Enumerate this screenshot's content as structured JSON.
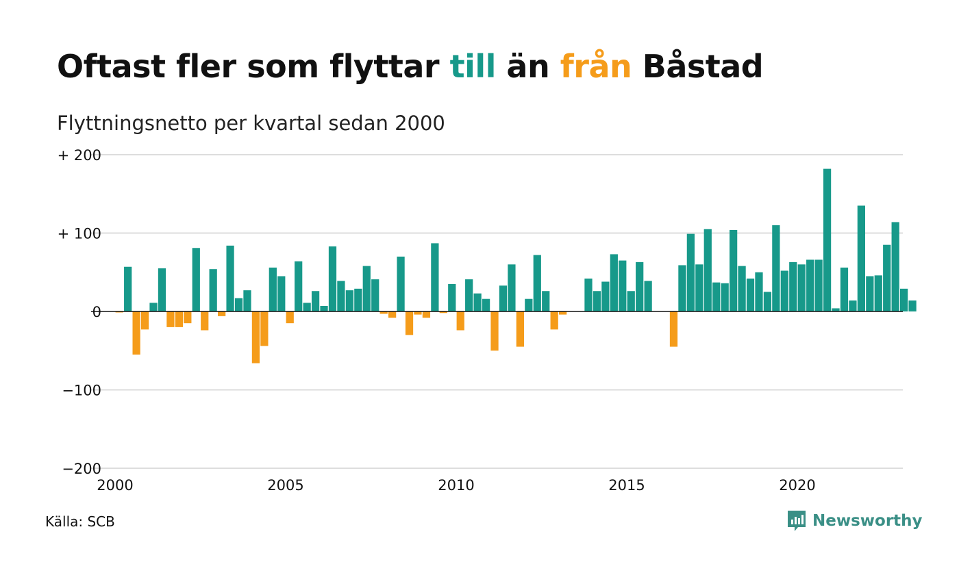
{
  "title": {
    "part1": "Oftast fler som flyttar ",
    "part2": "till",
    "part3": " än ",
    "part4": "från",
    "part5": " Båstad"
  },
  "subtitle": "Flyttningsnetto per kvartal sedan 2000",
  "source": "Källa: SCB",
  "brand": "Newsworthy",
  "colors": {
    "positive": "#17998a",
    "negative": "#f59c1a",
    "grid": "#dddddd",
    "zero_line": "#111111",
    "brand": "#3a8f86"
  },
  "chart_data": {
    "type": "bar",
    "start_year": 2000,
    "periods_per_year": 4,
    "ylim": [
      -200,
      200
    ],
    "yticks": [
      {
        "value": 200,
        "label": "+ 200"
      },
      {
        "value": 100,
        "label": "+ 100"
      },
      {
        "value": 0,
        "label": "0"
      },
      {
        "value": -100,
        "label": "−100"
      },
      {
        "value": -200,
        "label": "−200"
      }
    ],
    "xticks": [
      {
        "year": 2000,
        "label": "2000"
      },
      {
        "year": 2005,
        "label": "2005"
      },
      {
        "year": 2010,
        "label": "2010"
      },
      {
        "year": 2015,
        "label": "2015"
      },
      {
        "year": 2020,
        "label": "2020"
      }
    ],
    "values": [
      -1,
      57,
      -55,
      -23,
      11,
      55,
      -20,
      -20,
      -15,
      81,
      -24,
      54,
      -6,
      84,
      17,
      27,
      -66,
      -44,
      56,
      45,
      -15,
      64,
      11,
      26,
      7,
      83,
      39,
      27,
      29,
      58,
      41,
      -3,
      -8,
      70,
      -30,
      -4,
      -8,
      87,
      -2,
      35,
      -24,
      41,
      23,
      16,
      -50,
      33,
      60,
      -45,
      16,
      72,
      26,
      -23,
      -4,
      0,
      0,
      42,
      26,
      38,
      73,
      65,
      26,
      63,
      39,
      0,
      0,
      -45,
      59,
      99,
      60,
      105,
      37,
      36,
      104,
      58,
      42,
      50,
      25,
      110,
      52,
      63,
      60,
      66,
      66,
      182,
      4,
      56,
      14,
      135,
      45,
      46,
      85,
      114,
      29,
      14
    ]
  }
}
